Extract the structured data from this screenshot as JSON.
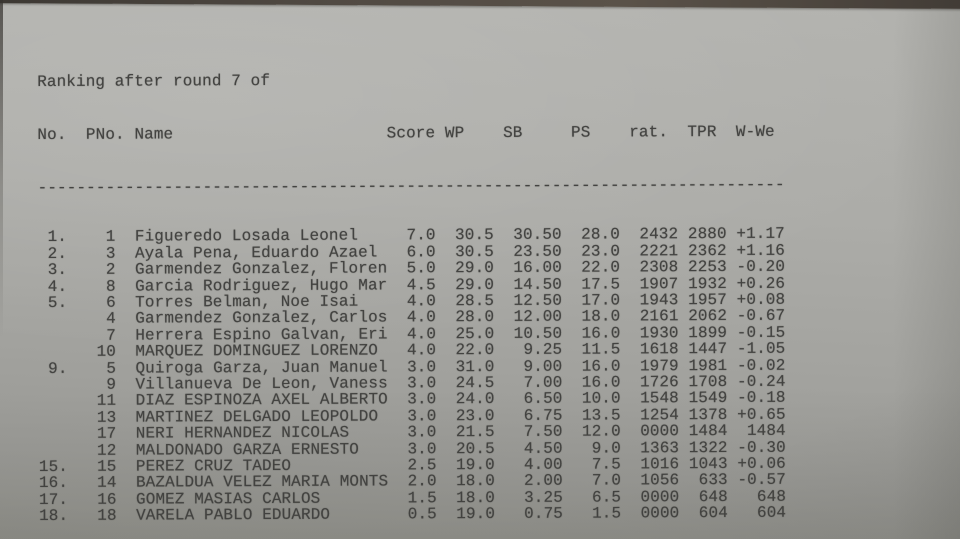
{
  "document": {
    "title": "Ranking after round 7 of",
    "columns": [
      "No.",
      "PNo.",
      "Name",
      "Score",
      "WP",
      "SB",
      "PS",
      "rat.",
      "TPR",
      "W-We"
    ],
    "rows": [
      {
        "no": "1.",
        "pno": "1",
        "name": "Figueredo Losada Leonel",
        "score": "7.0",
        "wp": "30.5",
        "sb": "30.50",
        "ps": "28.0",
        "rat": "2432",
        "tpr": "2880",
        "wwe": "+1.17"
      },
      {
        "no": "2.",
        "pno": "3",
        "name": "Ayala Pena, Eduardo Azael",
        "score": "6.0",
        "wp": "30.5",
        "sb": "23.50",
        "ps": "23.0",
        "rat": "2221",
        "tpr": "2362",
        "wwe": "+1.16"
      },
      {
        "no": "3.",
        "pno": "2",
        "name": "Garmendez Gonzalez, Floren",
        "score": "5.0",
        "wp": "29.0",
        "sb": "16.00",
        "ps": "22.0",
        "rat": "2308",
        "tpr": "2253",
        "wwe": "-0.20"
      },
      {
        "no": "4.",
        "pno": "8",
        "name": "Garcia Rodriguez, Hugo Mar",
        "score": "4.5",
        "wp": "29.0",
        "sb": "14.50",
        "ps": "17.5",
        "rat": "1907",
        "tpr": "1932",
        "wwe": "+0.26"
      },
      {
        "no": "5.",
        "pno": "6",
        "name": "Torres Belman, Noe Isai",
        "score": "4.0",
        "wp": "28.5",
        "sb": "12.50",
        "ps": "17.0",
        "rat": "1943",
        "tpr": "1957",
        "wwe": "+0.08"
      },
      {
        "no": "",
        "pno": "4",
        "name": "Garmendez Gonzalez, Carlos",
        "score": "4.0",
        "wp": "28.0",
        "sb": "12.00",
        "ps": "18.0",
        "rat": "2161",
        "tpr": "2062",
        "wwe": "-0.67"
      },
      {
        "no": "",
        "pno": "7",
        "name": "Herrera Espino Galvan, Eri",
        "score": "4.0",
        "wp": "25.0",
        "sb": "10.50",
        "ps": "16.0",
        "rat": "1930",
        "tpr": "1899",
        "wwe": "-0.15"
      },
      {
        "no": "",
        "pno": "10",
        "name": "MARQUEZ DOMINGUEZ LORENZO",
        "score": "4.0",
        "wp": "22.0",
        "sb": "9.25",
        "ps": "11.5",
        "rat": "1618",
        "tpr": "1447",
        "wwe": "-1.05"
      },
      {
        "no": "9.",
        "pno": "5",
        "name": "Quiroga Garza, Juan Manuel",
        "score": "3.0",
        "wp": "31.0",
        "sb": "9.00",
        "ps": "16.0",
        "rat": "1979",
        "tpr": "1981",
        "wwe": "-0.02"
      },
      {
        "no": "",
        "pno": "9",
        "name": "Villanueva De Leon, Vaness",
        "score": "3.0",
        "wp": "24.5",
        "sb": "7.00",
        "ps": "16.0",
        "rat": "1726",
        "tpr": "1708",
        "wwe": "-0.24"
      },
      {
        "no": "",
        "pno": "11",
        "name": "DIAZ ESPINOZA AXEL ALBERTO",
        "score": "3.0",
        "wp": "24.0",
        "sb": "6.50",
        "ps": "10.0",
        "rat": "1548",
        "tpr": "1549",
        "wwe": "-0.18"
      },
      {
        "no": "",
        "pno": "13",
        "name": "MARTINEZ DELGADO LEOPOLDO",
        "score": "3.0",
        "wp": "23.0",
        "sb": "6.75",
        "ps": "13.5",
        "rat": "1254",
        "tpr": "1378",
        "wwe": "+0.65"
      },
      {
        "no": "",
        "pno": "17",
        "name": "NERI HERNANDEZ NICOLAS",
        "score": "3.0",
        "wp": "21.5",
        "sb": "7.50",
        "ps": "12.0",
        "rat": "0000",
        "tpr": "1484",
        "wwe": "1484"
      },
      {
        "no": "",
        "pno": "12",
        "name": "MALDONADO GARZA ERNESTO",
        "score": "3.0",
        "wp": "20.5",
        "sb": "4.50",
        "ps": "9.0",
        "rat": "1363",
        "tpr": "1322",
        "wwe": "-0.30"
      },
      {
        "no": "15.",
        "pno": "15",
        "name": "PEREZ CRUZ TADEO",
        "score": "2.5",
        "wp": "19.0",
        "sb": "4.00",
        "ps": "7.5",
        "rat": "1016",
        "tpr": "1043",
        "wwe": "+0.06"
      },
      {
        "no": "16.",
        "pno": "14",
        "name": "BAZALDUA VELEZ MARIA MONTS",
        "score": "2.0",
        "wp": "18.0",
        "sb": "2.00",
        "ps": "7.0",
        "rat": "1056",
        "tpr": "633",
        "wwe": "-0.57"
      },
      {
        "no": "17.",
        "pno": "16",
        "name": "GOMEZ MASIAS CARLOS",
        "score": "1.5",
        "wp": "18.0",
        "sb": "3.25",
        "ps": "6.5",
        "rat": "0000",
        "tpr": "648",
        "wwe": "648"
      },
      {
        "no": "18.",
        "pno": "18",
        "name": "VARELA PABLO EDUARDO",
        "score": "0.5",
        "wp": "19.0",
        "sb": "0.75",
        "ps": "1.5",
        "rat": "0000",
        "tpr": "604",
        "wwe": "604"
      }
    ],
    "separator_char": "-"
  },
  "colors": {
    "paper_light": "#b3b3af",
    "paper_dark": "#92928c",
    "ink": "#434341",
    "table_edge": "#4b453f"
  }
}
